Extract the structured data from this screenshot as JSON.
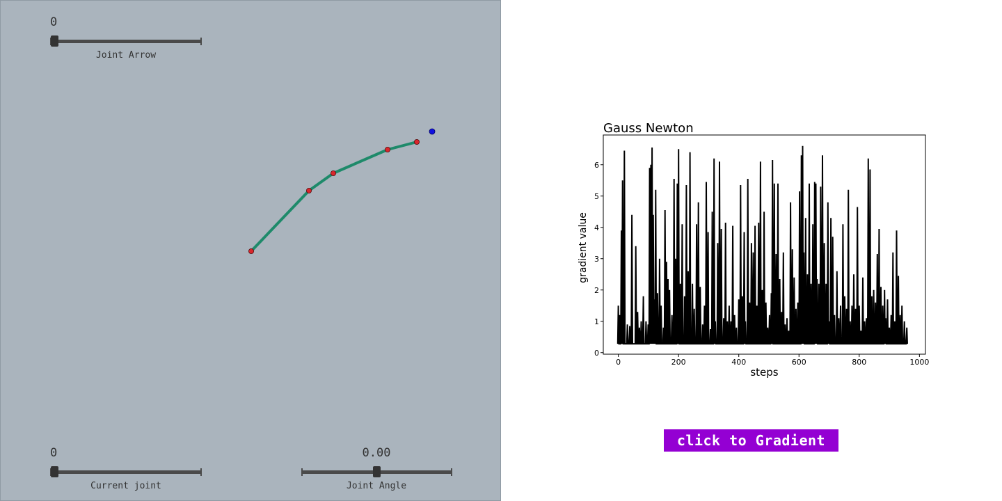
{
  "sliders": {
    "joint_arrow": {
      "value_text": "0",
      "label": "Joint Arrow"
    },
    "current_joint": {
      "value_text": "0",
      "label": "Current joint"
    },
    "joint_angle": {
      "value_text": "0.00",
      "label": "Joint Angle"
    }
  },
  "arm": {
    "link_color": "#1e8a6a",
    "joint_color": "#d9262c",
    "target_color": "#1010e0",
    "background": "#aab4bd"
  },
  "button": {
    "label": "click to Gradient",
    "color": "#9400d3"
  },
  "chart_data": {
    "type": "line",
    "title": "Gauss Newton",
    "xlabel": "steps",
    "ylabel": "gradient value",
    "xlim": [
      -50,
      1020
    ],
    "ylim": [
      -0.05,
      6.95
    ],
    "x_ticks": [
      0,
      200,
      400,
      600,
      800,
      1000
    ],
    "y_ticks": [
      0,
      1,
      2,
      3,
      4,
      5,
      6
    ],
    "grid": false,
    "series": [
      {
        "color": "#000000",
        "spikes": [
          [
            0,
            1.5
          ],
          [
            5,
            1.2
          ],
          [
            10,
            3.9
          ],
          [
            14,
            5.5
          ],
          [
            20,
            6.45
          ],
          [
            30,
            0.9
          ],
          [
            38,
            0.85
          ],
          [
            45,
            4.4
          ],
          [
            58,
            3.4
          ],
          [
            64,
            1.3
          ],
          [
            70,
            0.8
          ],
          [
            76,
            1.0
          ],
          [
            83,
            1.8
          ],
          [
            92,
            1.0
          ],
          [
            99,
            0.9
          ],
          [
            104,
            5.9
          ],
          [
            108,
            6.0
          ],
          [
            112,
            6.55
          ],
          [
            116,
            4.4
          ],
          [
            120,
            1.7
          ],
          [
            124,
            5.2
          ],
          [
            130,
            1.9
          ],
          [
            137,
            3.0
          ],
          [
            142,
            1.5
          ],
          [
            150,
            0.8
          ],
          [
            155,
            4.55
          ],
          [
            160,
            2.9
          ],
          [
            165,
            2.35
          ],
          [
            170,
            2.0
          ],
          [
            178,
            1.2
          ],
          [
            185,
            5.55
          ],
          [
            190,
            3.0
          ],
          [
            196,
            5.4
          ],
          [
            200,
            6.5
          ],
          [
            206,
            2.2
          ],
          [
            212,
            4.1
          ],
          [
            220,
            1.8
          ],
          [
            226,
            5.35
          ],
          [
            232,
            2.6
          ],
          [
            238,
            6.4
          ],
          [
            246,
            2.2
          ],
          [
            252,
            1.4
          ],
          [
            260,
            4.1
          ],
          [
            266,
            4.8
          ],
          [
            272,
            2.1
          ],
          [
            280,
            0.9
          ],
          [
            286,
            1.5
          ],
          [
            292,
            5.45
          ],
          [
            298,
            3.85
          ],
          [
            306,
            0.75
          ],
          [
            312,
            4.5
          ],
          [
            318,
            6.2
          ],
          [
            322,
            1.0
          ],
          [
            330,
            3.5
          ],
          [
            336,
            6.1
          ],
          [
            342,
            3.95
          ],
          [
            350,
            1.1
          ],
          [
            356,
            4.15
          ],
          [
            362,
            1.0
          ],
          [
            368,
            1.5
          ],
          [
            374,
            1.0
          ],
          [
            380,
            4.05
          ],
          [
            386,
            1.2
          ],
          [
            392,
            0.8
          ],
          [
            400,
            1.7
          ],
          [
            406,
            5.35
          ],
          [
            412,
            1.8
          ],
          [
            418,
            3.85
          ],
          [
            422,
            1.0
          ],
          [
            430,
            5.55
          ],
          [
            436,
            1.6
          ],
          [
            442,
            3.5
          ],
          [
            448,
            3.2
          ],
          [
            454,
            4.05
          ],
          [
            460,
            1.5
          ],
          [
            466,
            4.15
          ],
          [
            472,
            6.1
          ],
          [
            478,
            2.0
          ],
          [
            484,
            4.5
          ],
          [
            490,
            1.6
          ],
          [
            496,
            0.8
          ],
          [
            502,
            1.2
          ],
          [
            508,
            1.9
          ],
          [
            512,
            6.15
          ],
          [
            518,
            5.4
          ],
          [
            524,
            3.15
          ],
          [
            530,
            5.4
          ],
          [
            536,
            2.35
          ],
          [
            542,
            1.3
          ],
          [
            548,
            3.2
          ],
          [
            554,
            0.9
          ],
          [
            560,
            1.1
          ],
          [
            566,
            0.7
          ],
          [
            572,
            4.8
          ],
          [
            578,
            3.3
          ],
          [
            584,
            2.4
          ],
          [
            590,
            1.4
          ],
          [
            596,
            1.6
          ],
          [
            602,
            5.15
          ],
          [
            608,
            6.3
          ],
          [
            612,
            6.6
          ],
          [
            616,
            3.2
          ],
          [
            622,
            4.3
          ],
          [
            628,
            2.5
          ],
          [
            634,
            5.4
          ],
          [
            640,
            2.2
          ],
          [
            646,
            4.1
          ],
          [
            652,
            5.45
          ],
          [
            656,
            5.4
          ],
          [
            660,
            2.35
          ],
          [
            666,
            2.2
          ],
          [
            672,
            5.3
          ],
          [
            678,
            6.3
          ],
          [
            684,
            3.5
          ],
          [
            690,
            2.2
          ],
          [
            696,
            4.8
          ],
          [
            700,
            1.0
          ],
          [
            706,
            4.3
          ],
          [
            712,
            3.7
          ],
          [
            718,
            1.2
          ],
          [
            726,
            2.6
          ],
          [
            732,
            1.1
          ],
          [
            738,
            1.5
          ],
          [
            746,
            4.1
          ],
          [
            752,
            1.8
          ],
          [
            758,
            1.4
          ],
          [
            764,
            5.2
          ],
          [
            770,
            1.0
          ],
          [
            776,
            1.5
          ],
          [
            782,
            2.5
          ],
          [
            788,
            1.4
          ],
          [
            794,
            4.65
          ],
          [
            800,
            1.5
          ],
          [
            806,
            0.7
          ],
          [
            812,
            2.4
          ],
          [
            818,
            1.0
          ],
          [
            824,
            1.1
          ],
          [
            830,
            6.2
          ],
          [
            836,
            5.85
          ],
          [
            842,
            1.8
          ],
          [
            848,
            2.0
          ],
          [
            854,
            1.6
          ],
          [
            860,
            3.15
          ],
          [
            866,
            3.95
          ],
          [
            872,
            2.1
          ],
          [
            878,
            1.5
          ],
          [
            884,
            2.0
          ],
          [
            888,
            1.1
          ],
          [
            894,
            1.7
          ],
          [
            900,
            0.8
          ],
          [
            906,
            1.2
          ],
          [
            912,
            3.2
          ],
          [
            918,
            1.0
          ],
          [
            924,
            3.9
          ],
          [
            930,
            2.45
          ],
          [
            936,
            1.2
          ],
          [
            942,
            1.5
          ],
          [
            950,
            1.0
          ],
          [
            958,
            0.8
          ]
        ],
        "baseline": 0.28
      }
    ]
  }
}
